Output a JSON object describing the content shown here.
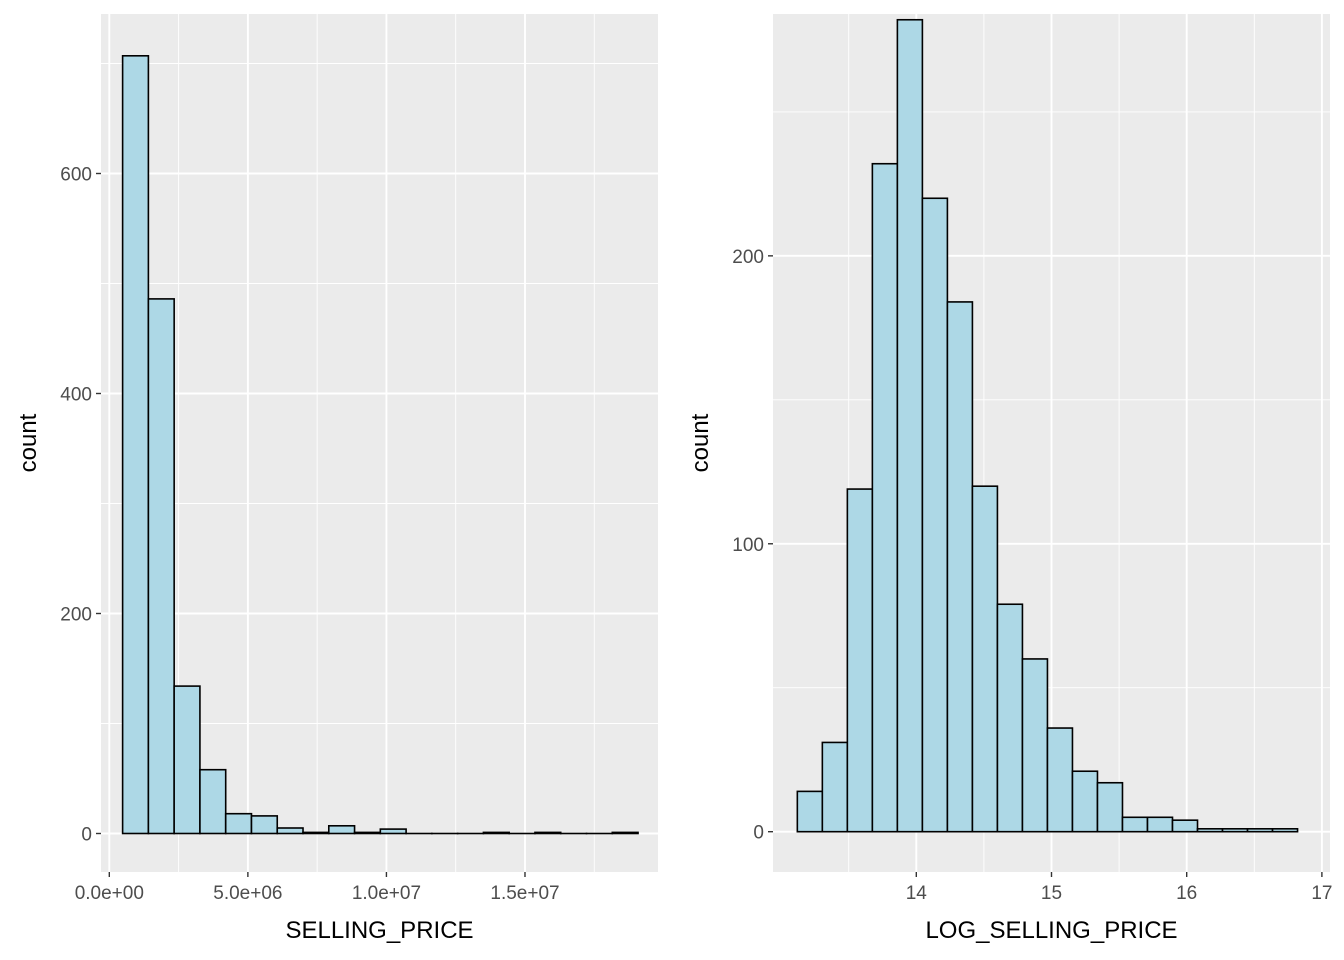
{
  "chart_data": [
    {
      "type": "bar",
      "title": "",
      "xlabel": "SELLING_PRICE",
      "ylabel": "count",
      "xlim": [
        -300000,
        19800000
      ],
      "ylim": [
        -35,
        745
      ],
      "xticks": [
        {
          "value": 0,
          "label": "0.0e+00"
        },
        {
          "value": 5000000,
          "label": "5.0e+06"
        },
        {
          "value": 10000000,
          "label": "1.0e+07"
        },
        {
          "value": 15000000,
          "label": "1.5e+07"
        }
      ],
      "yticks": [
        {
          "value": 0,
          "label": "0"
        },
        {
          "value": 200,
          "label": "200"
        },
        {
          "value": 400,
          "label": "400"
        },
        {
          "value": 600,
          "label": "600"
        }
      ],
      "bins": [
        {
          "x0": 480000,
          "x1": 1410000,
          "count": 707
        },
        {
          "x0": 1410000,
          "x1": 2340000,
          "count": 486
        },
        {
          "x0": 2340000,
          "x1": 3270000,
          "count": 134
        },
        {
          "x0": 3270000,
          "x1": 4200000,
          "count": 58
        },
        {
          "x0": 4200000,
          "x1": 5130000,
          "count": 18
        },
        {
          "x0": 5130000,
          "x1": 6060000,
          "count": 16
        },
        {
          "x0": 6060000,
          "x1": 6990000,
          "count": 5
        },
        {
          "x0": 6990000,
          "x1": 7920000,
          "count": 1
        },
        {
          "x0": 7920000,
          "x1": 8850000,
          "count": 7
        },
        {
          "x0": 8850000,
          "x1": 9780000,
          "count": 1
        },
        {
          "x0": 9780000,
          "x1": 10710000,
          "count": 4
        },
        {
          "x0": 10710000,
          "x1": 11640000,
          "count": 0
        },
        {
          "x0": 11640000,
          "x1": 12570000,
          "count": 0
        },
        {
          "x0": 12570000,
          "x1": 13500000,
          "count": 0
        },
        {
          "x0": 13500000,
          "x1": 14430000,
          "count": 1
        },
        {
          "x0": 14430000,
          "x1": 15360000,
          "count": 0
        },
        {
          "x0": 15360000,
          "x1": 16290000,
          "count": 1
        },
        {
          "x0": 16290000,
          "x1": 17220000,
          "count": 0
        },
        {
          "x0": 17220000,
          "x1": 18150000,
          "count": 0
        },
        {
          "x0": 18150000,
          "x1": 19080000,
          "count": 1
        }
      ],
      "bar_fill": "#add8e6",
      "bar_stroke": "#000000",
      "panel_bg": "#ebebeb",
      "grid_color": "#ffffff",
      "grid": true
    },
    {
      "type": "bar",
      "title": "",
      "xlabel": "LOG_SELLING_PRICE",
      "ylabel": "count",
      "xlim": [
        12.94,
        17.06
      ],
      "ylim": [
        -14,
        284
      ],
      "xticks": [
        {
          "value": 14,
          "label": "14"
        },
        {
          "value": 15,
          "label": "15"
        },
        {
          "value": 16,
          "label": "16"
        },
        {
          "value": 17,
          "label": "17"
        }
      ],
      "yticks": [
        {
          "value": 0,
          "label": "0"
        },
        {
          "value": 100,
          "label": "100"
        },
        {
          "value": 200,
          "label": "200"
        }
      ],
      "bins": [
        {
          "x0": 13.12,
          "x1": 13.305,
          "count": 14
        },
        {
          "x0": 13.305,
          "x1": 13.49,
          "count": 31
        },
        {
          "x0": 13.49,
          "x1": 13.675,
          "count": 119
        },
        {
          "x0": 13.675,
          "x1": 13.86,
          "count": 232
        },
        {
          "x0": 13.86,
          "x1": 14.045,
          "count": 282
        },
        {
          "x0": 14.045,
          "x1": 14.23,
          "count": 220
        },
        {
          "x0": 14.23,
          "x1": 14.415,
          "count": 184
        },
        {
          "x0": 14.415,
          "x1": 14.6,
          "count": 120
        },
        {
          "x0": 14.6,
          "x1": 14.785,
          "count": 79
        },
        {
          "x0": 14.785,
          "x1": 14.97,
          "count": 60
        },
        {
          "x0": 14.97,
          "x1": 15.155,
          "count": 36
        },
        {
          "x0": 15.155,
          "x1": 15.34,
          "count": 21
        },
        {
          "x0": 15.34,
          "x1": 15.525,
          "count": 17
        },
        {
          "x0": 15.525,
          "x1": 15.71,
          "count": 5
        },
        {
          "x0": 15.71,
          "x1": 15.895,
          "count": 5
        },
        {
          "x0": 15.895,
          "x1": 16.08,
          "count": 4
        },
        {
          "x0": 16.08,
          "x1": 16.265,
          "count": 1
        },
        {
          "x0": 16.265,
          "x1": 16.45,
          "count": 1
        },
        {
          "x0": 16.45,
          "x1": 16.635,
          "count": 1
        },
        {
          "x0": 16.635,
          "x1": 16.82,
          "count": 1
        }
      ],
      "bar_fill": "#add8e6",
      "bar_stroke": "#000000",
      "panel_bg": "#ebebeb",
      "grid_color": "#ffffff",
      "grid": true
    }
  ]
}
